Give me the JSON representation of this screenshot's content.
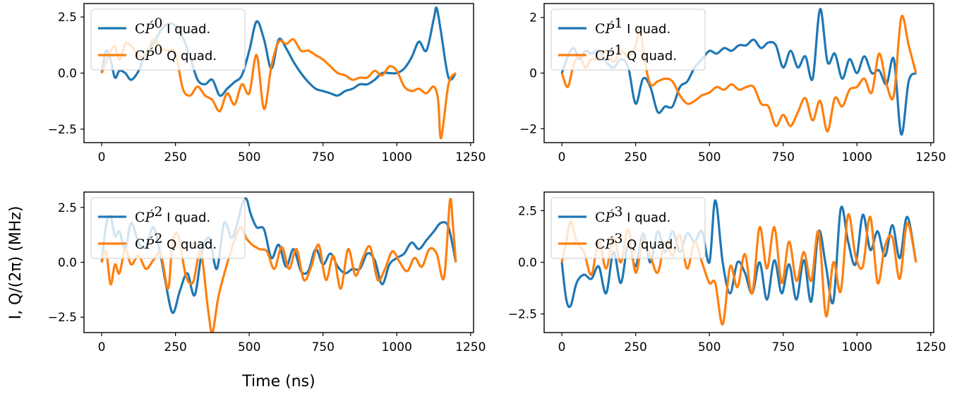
{
  "figure": {
    "xlabel": "Time (ns)",
    "ylabel": "I, Q/(2π) (MHz)"
  },
  "colors": {
    "i_quad": "#1f77b4",
    "q_quad": "#ff7f0e"
  },
  "chart_data": [
    {
      "type": "line",
      "index": "0",
      "xlim": [
        -60,
        1260
      ],
      "ylim": [
        -3.1,
        3.1
      ],
      "xticks": [
        "0",
        "250",
        "500",
        "750",
        "1000",
        "1250"
      ],
      "yticks": [
        "−2.5",
        "0.0",
        "2.5"
      ],
      "ytick_values": [
        -2.5,
        0,
        2.5
      ],
      "legend_position": "top-left",
      "series": [
        {
          "name": "I quad.",
          "color": "#1f77b4",
          "x": [
            0,
            15,
            30,
            45,
            60,
            80,
            100,
            125,
            150,
            175,
            200,
            225,
            250,
            275,
            300,
            325,
            350,
            375,
            400,
            425,
            450,
            475,
            500,
            525,
            550,
            575,
            600,
            625,
            650,
            675,
            700,
            725,
            750,
            775,
            800,
            825,
            850,
            875,
            900,
            925,
            950,
            975,
            1000,
            1025,
            1050,
            1075,
            1100,
            1125,
            1135,
            1150,
            1175,
            1200
          ],
          "y": [
            0.0,
            1.0,
            0.6,
            -0.2,
            0.1,
            0.0,
            -0.3,
            0.1,
            0.9,
            1.3,
            1.9,
            2.2,
            2.1,
            1.6,
            0.7,
            -0.3,
            -0.5,
            -0.3,
            -1.0,
            -0.7,
            -0.4,
            -0.1,
            1.0,
            2.3,
            1.5,
            0.2,
            1.5,
            1.1,
            0.5,
            0.0,
            -0.4,
            -0.7,
            -0.8,
            -0.9,
            -1.0,
            -0.8,
            -0.7,
            -0.5,
            -0.5,
            -0.3,
            0.0,
            0.0,
            0.0,
            0.2,
            0.7,
            1.4,
            1.0,
            2.4,
            2.9,
            1.8,
            -0.2,
            0.0
          ]
        },
        {
          "name": "Q quad.",
          "color": "#ff7f0e",
          "x": [
            0,
            15,
            30,
            45,
            60,
            80,
            100,
            125,
            150,
            175,
            200,
            225,
            250,
            275,
            300,
            325,
            350,
            375,
            400,
            425,
            450,
            475,
            500,
            525,
            550,
            575,
            600,
            625,
            650,
            675,
            700,
            725,
            750,
            775,
            800,
            825,
            850,
            875,
            900,
            925,
            950,
            975,
            1000,
            1025,
            1050,
            1075,
            1100,
            1125,
            1140,
            1150,
            1175,
            1200
          ],
          "y": [
            0.0,
            0.5,
            1.0,
            1.2,
            0.6,
            1.3,
            1.2,
            0.8,
            0.8,
            1.5,
            1.1,
            1.0,
            0.9,
            -0.7,
            -1.0,
            -0.6,
            -1.0,
            -1.2,
            -1.7,
            -0.9,
            -1.4,
            -0.5,
            -0.9,
            0.8,
            -1.6,
            0.3,
            1.4,
            1.3,
            1.5,
            1.0,
            1.0,
            0.8,
            0.6,
            0.3,
            0.0,
            -0.1,
            -0.3,
            -0.2,
            -0.2,
            0.1,
            -0.1,
            0.3,
            0.1,
            -0.6,
            -0.8,
            -0.7,
            -0.9,
            -0.6,
            -1.2,
            -2.9,
            -0.5,
            0.0
          ]
        }
      ]
    },
    {
      "type": "line",
      "index": "1",
      "xlim": [
        -60,
        1260
      ],
      "ylim": [
        -2.5,
        2.5
      ],
      "xticks": [
        "0",
        "250",
        "500",
        "750",
        "1000",
        "1250"
      ],
      "yticks": [
        "−2",
        "0",
        "2"
      ],
      "ytick_values": [
        -2,
        0,
        2
      ],
      "legend_position": "top-left",
      "series": [
        {
          "name": "I quad.",
          "color": "#1f77b4",
          "x": [
            0,
            20,
            40,
            60,
            80,
            100,
            125,
            150,
            175,
            200,
            225,
            250,
            275,
            300,
            325,
            350,
            375,
            400,
            425,
            450,
            475,
            500,
            525,
            550,
            575,
            600,
            625,
            650,
            675,
            700,
            725,
            750,
            775,
            800,
            825,
            850,
            875,
            900,
            925,
            950,
            975,
            1000,
            1025,
            1050,
            1075,
            1100,
            1125,
            1150,
            1175,
            1200
          ],
          "y": [
            0.0,
            0.6,
            0.9,
            0.5,
            0.8,
            0.7,
            0.8,
            0.4,
            0.2,
            0.5,
            0.2,
            -1.1,
            -0.2,
            -0.5,
            -1.4,
            -1.2,
            -1.2,
            -0.5,
            -0.3,
            0.2,
            0.5,
            0.8,
            0.7,
            0.9,
            0.8,
            1.0,
            1.0,
            1.2,
            0.9,
            1.1,
            1.0,
            0.2,
            0.8,
            0.2,
            0.6,
            -0.2,
            2.3,
            0.4,
            0.7,
            -0.2,
            0.5,
            0.0,
            0.6,
            0.0,
            0.1,
            -0.4,
            0.5,
            -2.2,
            -0.3,
            0.0
          ]
        },
        {
          "name": "Q quad.",
          "color": "#ff7f0e",
          "x": [
            0,
            20,
            40,
            60,
            80,
            100,
            125,
            150,
            175,
            200,
            225,
            250,
            265,
            280,
            300,
            325,
            350,
            375,
            400,
            425,
            450,
            475,
            500,
            525,
            550,
            575,
            600,
            625,
            650,
            675,
            700,
            725,
            750,
            775,
            800,
            825,
            850,
            875,
            900,
            925,
            950,
            975,
            1000,
            1025,
            1050,
            1075,
            1100,
            1125,
            1150,
            1175,
            1200
          ],
          "y": [
            0.0,
            -0.5,
            0.3,
            0.6,
            0.2,
            0.5,
            0.5,
            0.8,
            0.4,
            0.8,
            0.6,
            1.0,
            1.6,
            0.5,
            -0.4,
            -0.3,
            -0.2,
            -0.3,
            -0.8,
            -1.1,
            -1.0,
            -0.8,
            -0.7,
            -0.5,
            -0.6,
            -0.4,
            -0.6,
            -0.5,
            -0.5,
            -1.1,
            -1.2,
            -1.9,
            -1.5,
            -1.9,
            -1.4,
            -0.9,
            -1.7,
            -1.0,
            -2.1,
            -0.9,
            -1.2,
            -0.6,
            -0.5,
            -0.2,
            -0.7,
            0.7,
            -0.4,
            -0.8,
            2.0,
            1.0,
            0.0
          ]
        }
      ]
    },
    {
      "type": "line",
      "index": "2",
      "xlim": [
        -60,
        1260
      ],
      "ylim": [
        -3.2,
        3.2
      ],
      "xticks": [
        "0",
        "250",
        "500",
        "750",
        "1000",
        "1250"
      ],
      "yticks": [
        "−2.5",
        "0.0",
        "2.5"
      ],
      "ytick_values": [
        -2.5,
        0,
        2.5
      ],
      "legend_position": "top-left",
      "series": [
        {
          "name": "I quad.",
          "color": "#1f77b4",
          "x": [
            0,
            15,
            30,
            45,
            60,
            80,
            100,
            125,
            150,
            175,
            200,
            215,
            240,
            265,
            290,
            315,
            340,
            365,
            390,
            415,
            440,
            460,
            475,
            490,
            505,
            525,
            550,
            575,
            600,
            625,
            650,
            675,
            700,
            725,
            750,
            775,
            800,
            825,
            850,
            875,
            900,
            925,
            950,
            975,
            1000,
            1025,
            1050,
            1075,
            1100,
            1125,
            1150,
            1175,
            1200
          ],
          "y": [
            0.0,
            1.7,
            2.1,
            1.2,
            1.4,
            0.6,
            1.8,
            0.9,
            0.7,
            1.6,
            0.3,
            -0.8,
            -2.3,
            -1.3,
            -0.5,
            -1.5,
            0.5,
            1.1,
            -0.3,
            1.8,
            1.1,
            1.8,
            2.6,
            2.9,
            2.2,
            1.6,
            1.5,
            0.2,
            0.8,
            -0.2,
            0.6,
            -0.4,
            -0.4,
            0.6,
            -0.1,
            0.4,
            -0.2,
            -0.5,
            -0.3,
            -0.3,
            0.4,
            0.1,
            -1.0,
            -0.1,
            0.2,
            0.4,
            0.9,
            0.6,
            1.0,
            1.4,
            1.8,
            1.6,
            0.0
          ]
        },
        {
          "name": "Q quad.",
          "color": "#ff7f0e",
          "x": [
            0,
            15,
            30,
            45,
            60,
            80,
            100,
            125,
            150,
            175,
            200,
            225,
            240,
            260,
            285,
            310,
            335,
            360,
            375,
            395,
            420,
            445,
            470,
            490,
            510,
            535,
            560,
            585,
            610,
            635,
            660,
            685,
            710,
            735,
            760,
            785,
            810,
            835,
            860,
            885,
            910,
            935,
            960,
            985,
            1010,
            1035,
            1060,
            1085,
            1110,
            1135,
            1160,
            1180,
            1190,
            1200
          ],
          "y": [
            0.0,
            0.5,
            -1.0,
            -0.1,
            -0.5,
            0.6,
            -0.1,
            0.3,
            -0.3,
            0.1,
            0.4,
            -1.2,
            0.9,
            1.2,
            -0.6,
            -0.9,
            0.5,
            -2.1,
            -3.2,
            -1.6,
            -0.3,
            0.8,
            1.6,
            1.1,
            0.8,
            0.6,
            0.5,
            -0.3,
            0.7,
            -0.3,
            0.6,
            -0.8,
            -0.2,
            0.8,
            -0.8,
            0.3,
            -1.2,
            0.6,
            -0.6,
            0.2,
            0.7,
            -0.8,
            -0.3,
            0.5,
            0.0,
            -0.4,
            0.2,
            -0.2,
            0.6,
            0.4,
            -0.7,
            2.8,
            1.7,
            0.0
          ]
        }
      ]
    },
    {
      "type": "line",
      "index": "3",
      "xlim": [
        -60,
        1260
      ],
      "ylim": [
        -3.4,
        3.4
      ],
      "xticks": [
        "0",
        "250",
        "500",
        "750",
        "1000",
        "1250"
      ],
      "yticks": [
        "−2.5",
        "0.0",
        "2.5"
      ],
      "ytick_values": [
        -2.5,
        0,
        2.5
      ],
      "legend_position": "top-left",
      "series": [
        {
          "name": "I quad.",
          "color": "#1f77b4",
          "x": [
            0,
            15,
            30,
            50,
            75,
            100,
            125,
            150,
            175,
            200,
            225,
            250,
            275,
            300,
            325,
            350,
            375,
            400,
            425,
            450,
            475,
            500,
            520,
            545,
            570,
            595,
            620,
            645,
            670,
            695,
            720,
            745,
            770,
            795,
            820,
            845,
            870,
            895,
            920,
            945,
            970,
            995,
            1020,
            1045,
            1070,
            1095,
            1120,
            1145,
            1170,
            1200
          ],
          "y": [
            0.0,
            -1.8,
            -2.1,
            -1.0,
            -0.6,
            -0.8,
            -0.2,
            -1.5,
            0.5,
            -1.0,
            0.9,
            -0.2,
            1.4,
            0.0,
            1.5,
            0.5,
            1.5,
            0.5,
            1.4,
            1.0,
            1.5,
            0.0,
            3.0,
            0.0,
            -1.5,
            0.0,
            -0.5,
            -1.5,
            0.0,
            -1.8,
            0.1,
            -1.5,
            -0.1,
            -1.8,
            0.1,
            -1.9,
            1.5,
            -0.2,
            -1.9,
            2.6,
            1.0,
            -0.1,
            2.3,
            0.6,
            1.5,
            0.3,
            1.8,
            0.2,
            2.2,
            0.0
          ]
        },
        {
          "name": "Q quad.",
          "color": "#ff7f0e",
          "x": [
            0,
            15,
            30,
            50,
            75,
            100,
            125,
            150,
            175,
            200,
            225,
            250,
            275,
            300,
            325,
            350,
            375,
            400,
            425,
            450,
            475,
            500,
            520,
            545,
            570,
            595,
            620,
            645,
            670,
            695,
            720,
            745,
            770,
            795,
            820,
            845,
            870,
            895,
            920,
            945,
            970,
            995,
            1020,
            1045,
            1070,
            1095,
            1120,
            1145,
            1170,
            1200
          ],
          "y": [
            0.0,
            1.0,
            2.0,
            1.0,
            0.5,
            -0.6,
            1.0,
            -0.3,
            1.2,
            0.0,
            1.6,
            -0.5,
            1.1,
            0.3,
            -0.5,
            1.0,
            0.3,
            1.3,
            -0.3,
            1.0,
            0.0,
            -1.0,
            -1.0,
            -3.0,
            -0.2,
            -1.2,
            0.4,
            -1.5,
            1.7,
            -0.3,
            1.7,
            -1.0,
            1.0,
            -0.9,
            0.5,
            -0.9,
            1.5,
            -2.6,
            0.0,
            -1.4,
            2.3,
            0.3,
            -0.2,
            2.2,
            -1.0,
            0.8,
            1.2,
            -0.8,
            1.9,
            0.0
          ]
        }
      ]
    }
  ]
}
